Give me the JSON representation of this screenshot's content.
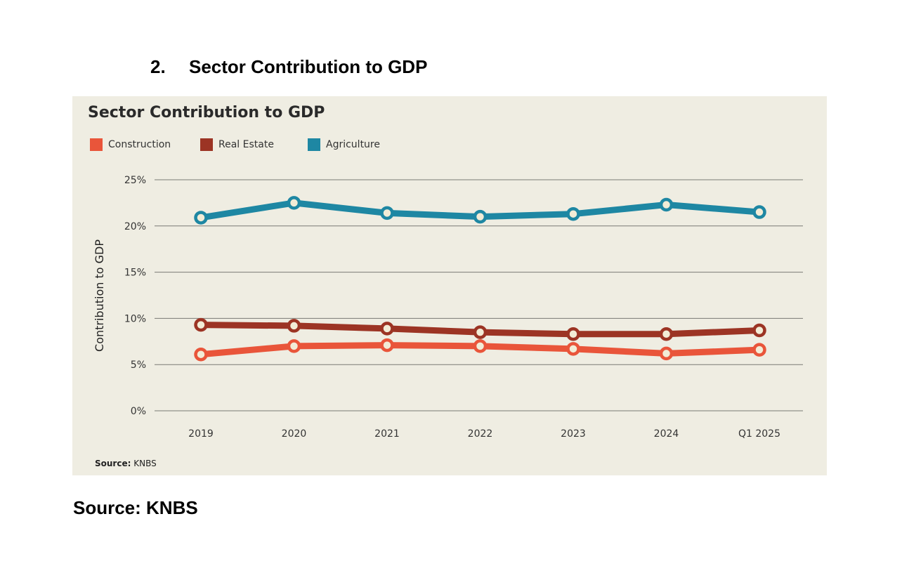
{
  "document": {
    "heading_number": "2.",
    "heading_text": "Sector Contribution to GDP",
    "source_text": "Source: KNBS"
  },
  "chart_data": {
    "type": "line",
    "title": "Sector Contribution to GDP",
    "ylabel": "Contribution to GDP",
    "xlabel": "",
    "categories": [
      "2019",
      "2020",
      "2021",
      "2022",
      "2023",
      "2024",
      "Q1 2025"
    ],
    "ylim": [
      0,
      25
    ],
    "yticks": [
      0,
      5,
      10,
      15,
      20,
      25
    ],
    "ytick_labels": [
      "0%",
      "5%",
      "10%",
      "15%",
      "20%",
      "25%"
    ],
    "grid": true,
    "legend_position": "top-left",
    "series": [
      {
        "name": "Construction",
        "color": "#e9553a",
        "values": [
          6.1,
          7.0,
          7.1,
          7.0,
          6.7,
          6.2,
          6.6
        ]
      },
      {
        "name": "Real Estate",
        "color": "#9c3424",
        "values": [
          9.3,
          9.2,
          8.9,
          8.5,
          8.3,
          8.3,
          8.7
        ]
      },
      {
        "name": "Agriculture",
        "color": "#1e87a3",
        "values": [
          20.9,
          22.5,
          21.4,
          21.0,
          21.3,
          22.3,
          21.5
        ]
      }
    ],
    "source_label": "Source:",
    "source_value": "KNBS"
  }
}
